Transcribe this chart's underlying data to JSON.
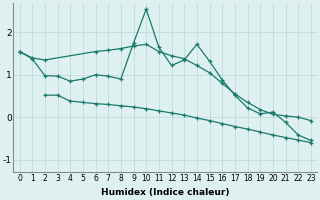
{
  "xlabel": "Humidex (Indice chaleur)",
  "bg_color": "#dff0f0",
  "line_color": "#1a7a6e",
  "grid_color": "#b8d8d8",
  "xlim": [
    -0.5,
    23.5
  ],
  "ylim": [
    -1.3,
    2.7
  ],
  "xticks": [
    0,
    1,
    2,
    3,
    4,
    5,
    6,
    7,
    8,
    9,
    10,
    11,
    12,
    13,
    14,
    15,
    16,
    17,
    18,
    19,
    20,
    21,
    22,
    23
  ],
  "yticks": [
    -1,
    0,
    1,
    2
  ],
  "line1_x": [
    0,
    1,
    2,
    6,
    7,
    8,
    9,
    10,
    11,
    12,
    13,
    14,
    15,
    16,
    17,
    18,
    19,
    20,
    21,
    22,
    23
  ],
  "line1_y": [
    1.55,
    1.4,
    1.35,
    1.55,
    1.58,
    1.62,
    1.68,
    1.72,
    1.55,
    1.45,
    1.38,
    1.22,
    1.05,
    0.8,
    0.55,
    0.35,
    0.18,
    0.07,
    0.03,
    0.0,
    -0.08
  ],
  "line2_x": [
    0,
    1,
    2,
    3,
    4,
    5,
    6,
    7,
    8,
    9,
    10,
    11,
    12,
    13,
    14,
    15,
    16,
    17,
    18,
    19,
    20,
    21,
    22,
    23
  ],
  "line2_y": [
    1.55,
    1.38,
    0.98,
    0.97,
    0.85,
    0.9,
    1.0,
    0.97,
    0.9,
    1.75,
    2.55,
    1.65,
    1.22,
    1.35,
    1.72,
    1.32,
    0.88,
    0.52,
    0.22,
    0.08,
    0.12,
    -0.12,
    -0.42,
    -0.55
  ],
  "line3_x": [
    2,
    3,
    4,
    5,
    6,
    7,
    8,
    9,
    10,
    11,
    12,
    13,
    14,
    15,
    16,
    17,
    18,
    19,
    20,
    21,
    22,
    23
  ],
  "line3_y": [
    0.52,
    0.52,
    0.38,
    0.35,
    0.32,
    0.3,
    0.27,
    0.24,
    0.2,
    0.15,
    0.1,
    0.05,
    -0.02,
    -0.08,
    -0.15,
    -0.22,
    -0.28,
    -0.35,
    -0.42,
    -0.48,
    -0.54,
    -0.6
  ]
}
